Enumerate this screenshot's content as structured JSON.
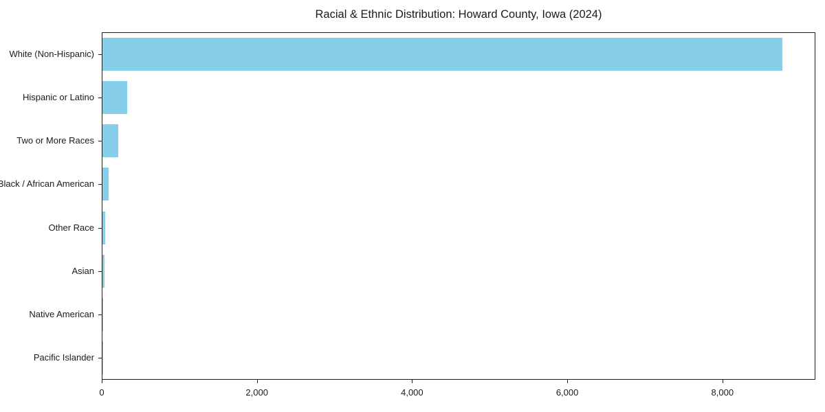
{
  "chart_data": {
    "type": "bar",
    "orientation": "horizontal",
    "title": "Racial & Ethnic Distribution: Howard County, Iowa (2024)",
    "xlabel": "",
    "ylabel": "",
    "categories": [
      "White (Non-Hispanic)",
      "Hispanic or Latino",
      "Two or More Races",
      "Black / African American",
      "Other Race",
      "Asian",
      "Native American",
      "Pacific Islander"
    ],
    "values": [
      8760,
      315,
      200,
      80,
      35,
      30,
      10,
      3
    ],
    "xlim": [
      0,
      9198
    ],
    "x_ticks": [
      0,
      2000,
      4000,
      6000,
      8000
    ],
    "x_tick_labels": [
      "0",
      "2,000",
      "4,000",
      "6,000",
      "8,000"
    ],
    "bar_color": "#87CEEB",
    "grid": false,
    "legend": null,
    "category_axis_order": "top-to-bottom"
  }
}
